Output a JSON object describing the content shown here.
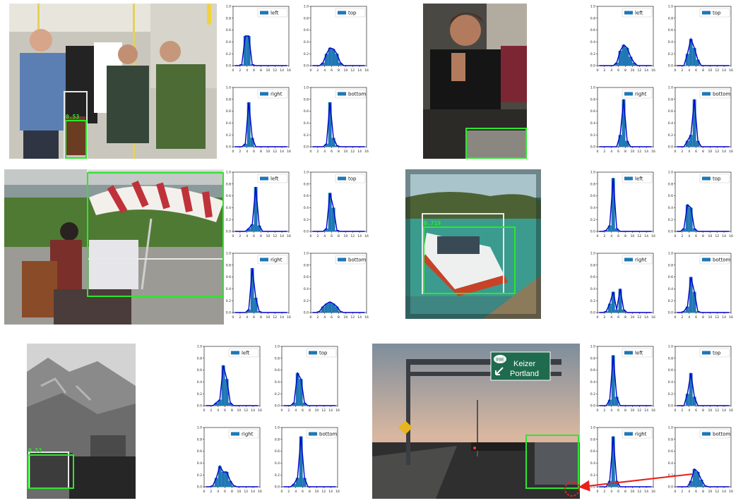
{
  "colors": {
    "detection_box": "#2ee62e",
    "ground_truth_box": "#e8e8e8",
    "hist_fill": "#1f77b4",
    "hist_line": "#0000cc",
    "arrow": "#e8201a"
  },
  "hist_axes": {
    "x_ticks": [
      "0",
      "2",
      "4",
      "6",
      "8",
      "10",
      "12",
      "14",
      "16"
    ],
    "y_ticks": [
      "0.0",
      "0.2",
      "0.4",
      "0.6",
      "0.8",
      "1.0"
    ],
    "xlim": [
      0,
      16
    ],
    "ylim": [
      0,
      1.0
    ]
  },
  "examples": [
    {
      "score": "0.53",
      "panels": [
        {
          "label": "left",
          "values": [
            0,
            0,
            0.02,
            0.5,
            0.5,
            0.02,
            0,
            0,
            0,
            0,
            0,
            0,
            0,
            0,
            0,
            0
          ]
        },
        {
          "label": "top",
          "values": [
            0,
            0,
            0,
            0.05,
            0.2,
            0.3,
            0.28,
            0.2,
            0.05,
            0,
            0,
            0,
            0,
            0,
            0,
            0
          ]
        },
        {
          "label": "right",
          "values": [
            0,
            0,
            0,
            0.05,
            0.75,
            0.15,
            0,
            0,
            0,
            0,
            0,
            0,
            0,
            0,
            0,
            0
          ]
        },
        {
          "label": "bottom",
          "values": [
            0,
            0,
            0,
            0,
            0.05,
            0.75,
            0.15,
            0.02,
            0,
            0,
            0,
            0,
            0,
            0,
            0,
            0
          ]
        }
      ]
    },
    {
      "score": "",
      "panels": [
        {
          "label": "left",
          "values": [
            0,
            0,
            0,
            0,
            0,
            0.05,
            0.25,
            0.35,
            0.3,
            0.15,
            0.05,
            0,
            0,
            0,
            0,
            0
          ]
        },
        {
          "label": "top",
          "values": [
            0,
            0,
            0,
            0.2,
            0.45,
            0.3,
            0.1,
            0,
            0,
            0,
            0,
            0,
            0,
            0,
            0,
            0
          ]
        },
        {
          "label": "right",
          "values": [
            0,
            0,
            0,
            0,
            0,
            0,
            0.2,
            0.8,
            0.1,
            0,
            0,
            0,
            0,
            0,
            0,
            0
          ]
        },
        {
          "label": "bottom",
          "values": [
            0,
            0,
            0,
            0.1,
            0.2,
            0.8,
            0.1,
            0,
            0,
            0,
            0,
            0,
            0,
            0,
            0,
            0
          ]
        }
      ]
    },
    {
      "score": "",
      "panels": [
        {
          "label": "left",
          "values": [
            0,
            0,
            0,
            0,
            0.05,
            0.12,
            0.75,
            0.1,
            0,
            0,
            0,
            0,
            0,
            0,
            0,
            0
          ]
        },
        {
          "label": "top",
          "values": [
            0,
            0,
            0,
            0,
            0.05,
            0.65,
            0.4,
            0.02,
            0,
            0,
            0,
            0,
            0,
            0,
            0,
            0
          ]
        },
        {
          "label": "right",
          "values": [
            0,
            0,
            0,
            0,
            0.05,
            0.75,
            0.25,
            0.02,
            0,
            0,
            0,
            0,
            0,
            0,
            0,
            0
          ]
        },
        {
          "label": "bottom",
          "values": [
            0,
            0,
            0.02,
            0.1,
            0.15,
            0.18,
            0.15,
            0.1,
            0.02,
            0,
            0,
            0,
            0,
            0,
            0,
            0
          ]
        }
      ]
    },
    {
      "score": "0.719",
      "panels": [
        {
          "label": "left",
          "values": [
            0,
            0,
            0.02,
            0.1,
            0.9,
            0.05,
            0,
            0,
            0,
            0,
            0,
            0,
            0,
            0,
            0,
            0
          ]
        },
        {
          "label": "top",
          "values": [
            0,
            0,
            0.05,
            0.45,
            0.4,
            0.05,
            0,
            0,
            0,
            0,
            0,
            0,
            0,
            0,
            0,
            0
          ]
        },
        {
          "label": "right",
          "values": [
            0,
            0,
            0.02,
            0.15,
            0.35,
            0.05,
            0.4,
            0.05,
            0,
            0,
            0,
            0,
            0,
            0,
            0,
            0
          ]
        },
        {
          "label": "bottom",
          "values": [
            0,
            0,
            0.02,
            0.1,
            0.6,
            0.35,
            0.02,
            0,
            0,
            0,
            0,
            0,
            0,
            0,
            0,
            0
          ]
        }
      ]
    },
    {
      "score": "0.53",
      "panels": [
        {
          "label": "left",
          "values": [
            0,
            0,
            0,
            0.05,
            0.1,
            0.68,
            0.45,
            0.05,
            0,
            0,
            0,
            0,
            0,
            0,
            0,
            0
          ]
        },
        {
          "label": "top",
          "values": [
            0,
            0,
            0,
            0.05,
            0.55,
            0.45,
            0.05,
            0,
            0,
            0,
            0,
            0,
            0,
            0,
            0,
            0
          ]
        },
        {
          "label": "right",
          "values": [
            0,
            0,
            0.02,
            0.15,
            0.35,
            0.25,
            0.25,
            0.1,
            0.02,
            0,
            0,
            0,
            0,
            0,
            0,
            0
          ]
        },
        {
          "label": "bottom",
          "values": [
            0,
            0,
            0,
            0.05,
            0.15,
            0.85,
            0.15,
            0,
            0,
            0,
            0,
            0,
            0,
            0,
            0,
            0
          ]
        }
      ]
    },
    {
      "score": "",
      "panels": [
        {
          "label": "left",
          "values": [
            0,
            0,
            0,
            0.1,
            0.85,
            0.15,
            0,
            0,
            0,
            0,
            0,
            0,
            0,
            0,
            0,
            0
          ]
        },
        {
          "label": "top",
          "values": [
            0,
            0,
            0,
            0.2,
            0.55,
            0.15,
            0,
            0,
            0,
            0,
            0,
            0,
            0,
            0,
            0,
            0
          ]
        },
        {
          "label": "right",
          "values": [
            0,
            0,
            0,
            0.1,
            0.85,
            0.1,
            0,
            0,
            0,
            0,
            0,
            0,
            0,
            0,
            0,
            0
          ]
        },
        {
          "label": "bottom",
          "values": [
            0,
            0,
            0,
            0,
            0.1,
            0.3,
            0.25,
            0.12,
            0.02,
            0,
            0,
            0,
            0,
            0,
            0,
            0
          ]
        }
      ]
    }
  ],
  "signs": {
    "route": "99E",
    "line1": "Keizer",
    "line2": "Portland"
  }
}
